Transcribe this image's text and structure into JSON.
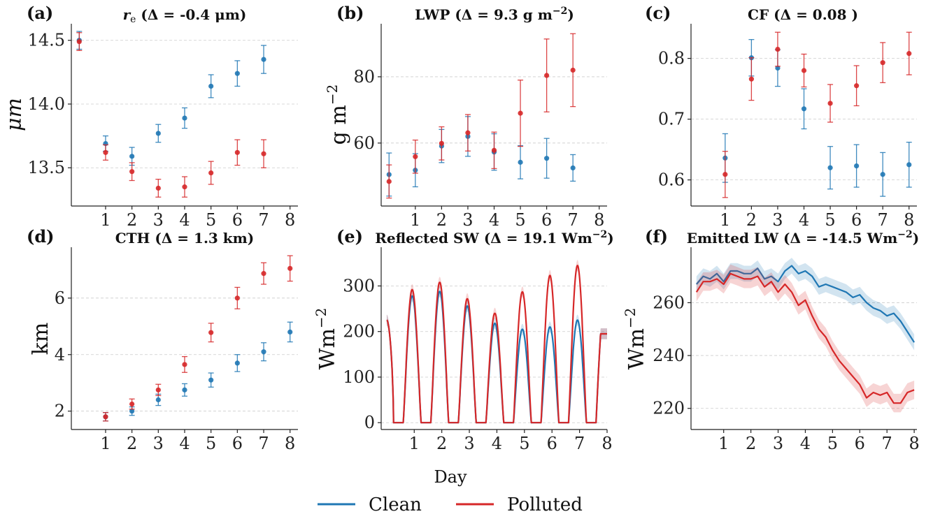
{
  "figure": {
    "xlabel": "Day",
    "legend": {
      "placement": "bottom-center",
      "entries": [
        {
          "label": "Clean",
          "color": "#1f77b4"
        },
        {
          "label": "Polluted",
          "color": "#d62728"
        }
      ]
    }
  },
  "chart_data": [
    {
      "id": "a",
      "letter": "(a)",
      "type": "scatter",
      "title": "r_e (Δ = -0.4 μm)",
      "title_parts": {
        "main": "r",
        "sub": "e",
        "rest": " (Δ = -0.4 μm)"
      },
      "ylabel": "μm",
      "ylim": [
        13.2,
        14.63
      ],
      "yticks": [
        13.5,
        14.0,
        14.5
      ],
      "ytick_labels": [
        "13.5",
        "14.0",
        "14.5"
      ],
      "xlim": [
        -0.3,
        8.3
      ],
      "xticks": [
        1,
        2,
        3,
        4,
        5,
        6,
        7,
        8
      ],
      "xtick_labels": [
        "1",
        "2",
        "3",
        "4",
        "5",
        "6",
        "7",
        "8"
      ],
      "grid": true,
      "series": [
        {
          "name": "Clean",
          "color": "#1f77b4",
          "x": [
            0,
            1,
            2,
            3,
            4,
            5,
            6,
            7
          ],
          "y": [
            14.5,
            13.69,
            13.59,
            13.77,
            13.89,
            14.14,
            14.24,
            14.35
          ],
          "err": [
            0.07,
            0.06,
            0.07,
            0.07,
            0.08,
            0.09,
            0.1,
            0.11
          ]
        },
        {
          "name": "Polluted",
          "color": "#d62728",
          "x": [
            0,
            1,
            2,
            3,
            4,
            5,
            6,
            7
          ],
          "y": [
            14.49,
            13.62,
            13.47,
            13.34,
            13.35,
            13.46,
            13.62,
            13.61
          ],
          "err": [
            0.07,
            0.06,
            0.07,
            0.07,
            0.08,
            0.09,
            0.1,
            0.11
          ]
        }
      ]
    },
    {
      "id": "b",
      "letter": "(b)",
      "type": "scatter",
      "title": "LWP (Δ = 9.3 g m^-2)",
      "title_parts": {
        "main": "LWP (Δ = 9.3 g m",
        "sup": "−2",
        "rest": ")"
      },
      "ylabel": "g m^-2",
      "ylabel_parts": {
        "main": "g m",
        "sup": "−2"
      },
      "ylim": [
        41.0,
        96.0
      ],
      "yticks": [
        60,
        80
      ],
      "ytick_labels": [
        "60",
        "80"
      ],
      "xlim": [
        -0.3,
        8.3
      ],
      "xticks": [
        1,
        2,
        3,
        4,
        5,
        6,
        7,
        8
      ],
      "xtick_labels": [
        "1",
        "2",
        "3",
        "4",
        "5",
        "6",
        "7",
        "8"
      ],
      "grid": true,
      "series": [
        {
          "name": "Clean",
          "color": "#1f77b4",
          "x": [
            0,
            1,
            2,
            3,
            4,
            5,
            6,
            7
          ],
          "y": [
            50.5,
            51.8,
            59.1,
            62.0,
            57.3,
            54.2,
            55.4,
            52.5
          ],
          "err": [
            6.5,
            5.0,
            5.0,
            6.0,
            5.5,
            5.0,
            6.0,
            4.0
          ]
        },
        {
          "name": "Polluted",
          "color": "#d62728",
          "x": [
            0,
            1,
            2,
            3,
            4,
            5,
            6,
            7
          ],
          "y": [
            48.4,
            55.9,
            59.9,
            63.1,
            57.8,
            69.0,
            80.4,
            82.0
          ],
          "err": [
            5.0,
            5.0,
            5.0,
            5.5,
            5.5,
            10.0,
            11.0,
            11.0
          ]
        }
      ]
    },
    {
      "id": "c",
      "letter": "(c)",
      "type": "scatter",
      "title": "CF (Δ = 0.08 )",
      "ylabel": "",
      "ylim": [
        0.557,
        0.857
      ],
      "yticks": [
        0.6,
        0.7,
        0.8
      ],
      "ytick_labels": [
        "0.6",
        "0.7",
        "0.8"
      ],
      "xlim": [
        -0.3,
        8.3
      ],
      "xticks": [
        1,
        2,
        3,
        4,
        5,
        6,
        7,
        8
      ],
      "xtick_labels": [
        "1",
        "2",
        "3",
        "4",
        "5",
        "6",
        "7",
        "8"
      ],
      "grid": true,
      "series": [
        {
          "name": "Clean",
          "color": "#1f77b4",
          "x": [
            1,
            2,
            3,
            4,
            5,
            6,
            7,
            8
          ],
          "y": [
            0.636,
            0.801,
            0.784,
            0.717,
            0.62,
            0.623,
            0.609,
            0.625
          ],
          "err": [
            0.04,
            0.03,
            0.03,
            0.033,
            0.035,
            0.035,
            0.036,
            0.037
          ]
        },
        {
          "name": "Polluted",
          "color": "#d62728",
          "x": [
            1,
            2,
            3,
            4,
            5,
            6,
            7,
            8
          ],
          "y": [
            0.609,
            0.766,
            0.815,
            0.78,
            0.726,
            0.755,
            0.793,
            0.808
          ],
          "err": [
            0.038,
            0.035,
            0.028,
            0.027,
            0.031,
            0.033,
            0.033,
            0.035
          ]
        }
      ]
    },
    {
      "id": "d",
      "letter": "(d)",
      "type": "scatter",
      "title": "CTH (Δ = 1.3 km)",
      "ylabel": "km",
      "ylim": [
        1.35,
        7.8
      ],
      "yticks": [
        2,
        4,
        6
      ],
      "ytick_labels": [
        "2",
        "4",
        "6"
      ],
      "xlim": [
        -0.3,
        8.3
      ],
      "xticks": [
        1,
        2,
        3,
        4,
        5,
        6,
        7,
        8
      ],
      "xtick_labels": [
        "1",
        "2",
        "3",
        "4",
        "5",
        "6",
        "7",
        "8"
      ],
      "grid": true,
      "series": [
        {
          "name": "Clean",
          "color": "#1f77b4",
          "x": [
            1,
            2,
            3,
            4,
            5,
            6,
            7,
            8
          ],
          "y": [
            1.8,
            2.0,
            2.4,
            2.75,
            3.1,
            3.7,
            4.1,
            4.8
          ],
          "err": [
            0.15,
            0.15,
            0.2,
            0.22,
            0.25,
            0.3,
            0.32,
            0.35
          ]
        },
        {
          "name": "Polluted",
          "color": "#d62728",
          "x": [
            1,
            2,
            3,
            4,
            5,
            6,
            7,
            8
          ],
          "y": [
            1.8,
            2.25,
            2.75,
            3.65,
            4.78,
            6.0,
            6.87,
            7.05
          ],
          "err": [
            0.15,
            0.18,
            0.2,
            0.28,
            0.33,
            0.38,
            0.38,
            0.45
          ]
        }
      ]
    },
    {
      "id": "e",
      "letter": "(e)",
      "type": "line",
      "title": "Reflected SW (Δ = 19.1 Wm^-2)",
      "title_parts": {
        "main": "Reflected SW (Δ = 19.1 Wm",
        "sup": "−2",
        "rest": ")"
      },
      "ylabel": "Wm^-2",
      "ylabel_parts": {
        "main": "Wm",
        "sup": "−2"
      },
      "ylim": [
        -15,
        385
      ],
      "yticks": [
        0,
        100,
        200,
        300
      ],
      "ytick_labels": [
        "0",
        "100",
        "200",
        "300"
      ],
      "xlim": [
        -0.2,
        8.0
      ],
      "xticks": [
        1,
        2,
        3,
        4,
        5,
        6,
        7,
        8
      ],
      "xtick_labels": [
        "1",
        "2",
        "3",
        "4",
        "5",
        "6",
        "7",
        "8"
      ],
      "grid": true,
      "diurnal": {
        "period": 1.0,
        "night_start": 0.25,
        "night_end": 0.6,
        "peak_phase": 0.925,
        "start_value": 225,
        "end_value": 195
      },
      "series": [
        {
          "name": "Clean",
          "color": "#1f77b4",
          "band": 12,
          "peaks": [
            278,
            288,
            256,
            218,
            205,
            210,
            225
          ]
        },
        {
          "name": "Polluted",
          "color": "#d62728",
          "band": 12,
          "peaks": [
            292,
            308,
            272,
            240,
            287,
            323,
            345
          ]
        }
      ]
    },
    {
      "id": "f",
      "letter": "(f)",
      "type": "line",
      "title": "Emitted LW (Δ = -14.5 Wm^-2)",
      "title_parts": {
        "main": "Emitted LW (Δ = -14.5 Wm",
        "sup": "−2",
        "rest": ")"
      },
      "ylabel": "Wm^-2",
      "ylabel_parts": {
        "main": "Wm",
        "sup": "−2"
      },
      "ylim": [
        212,
        281
      ],
      "yticks": [
        220,
        240,
        260
      ],
      "ytick_labels": [
        "220",
        "240",
        "260"
      ],
      "xlim": [
        -0.2,
        8.1
      ],
      "xticks": [
        1,
        2,
        3,
        4,
        5,
        6,
        7,
        8
      ],
      "xtick_labels": [
        "1",
        "2",
        "3",
        "4",
        "5",
        "6",
        "7",
        "8"
      ],
      "grid": true,
      "series": [
        {
          "name": "Clean",
          "color": "#1f77b4",
          "band": 3,
          "x": [
            0.0,
            0.25,
            0.5,
            0.75,
            1.0,
            1.25,
            1.5,
            1.75,
            2.0,
            2.25,
            2.5,
            2.75,
            3.0,
            3.25,
            3.5,
            3.75,
            4.0,
            4.25,
            4.5,
            4.75,
            5.0,
            5.25,
            5.5,
            5.75,
            6.0,
            6.25,
            6.5,
            6.75,
            7.0,
            7.25,
            7.5,
            7.75,
            8.0
          ],
          "y": [
            267,
            270,
            269,
            271,
            268,
            272,
            272,
            271,
            271,
            273,
            269,
            270,
            268,
            272,
            274,
            271,
            272,
            270,
            266,
            267,
            266,
            265,
            264,
            262,
            263,
            260,
            258,
            257,
            255,
            256,
            253,
            249,
            245
          ]
        },
        {
          "name": "Polluted",
          "color": "#d62728",
          "band": 3.5,
          "x": [
            0.0,
            0.25,
            0.5,
            0.75,
            1.0,
            1.25,
            1.5,
            1.75,
            2.0,
            2.25,
            2.5,
            2.75,
            3.0,
            3.25,
            3.5,
            3.75,
            4.0,
            4.25,
            4.5,
            4.75,
            5.0,
            5.25,
            5.5,
            5.75,
            6.0,
            6.25,
            6.5,
            6.75,
            7.0,
            7.25,
            7.5,
            7.75,
            8.0
          ],
          "y": [
            264,
            268,
            268,
            269,
            267,
            271,
            270,
            269,
            269,
            270,
            266,
            268,
            264,
            267,
            264,
            259,
            261,
            255,
            250,
            247,
            242,
            238,
            235,
            232,
            229,
            224,
            226,
            225,
            226,
            222,
            222,
            226,
            227
          ]
        }
      ]
    }
  ]
}
